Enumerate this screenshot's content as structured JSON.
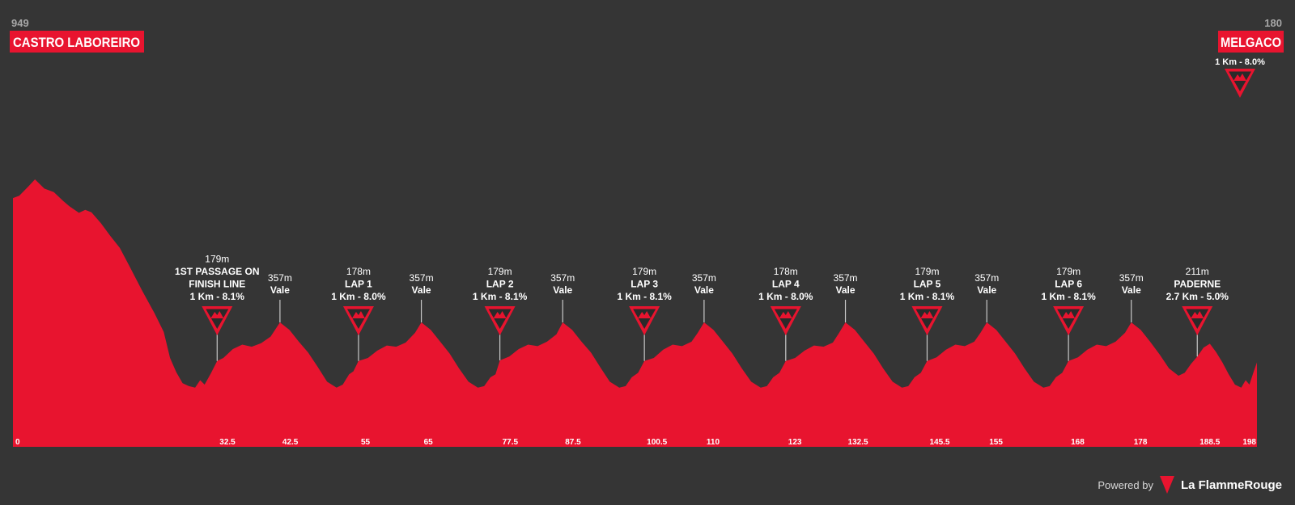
{
  "header": {
    "start": {
      "elevation": "949",
      "name": "CASTRO LABOREIRO"
    },
    "finish": {
      "elevation": "180",
      "name": "MELGACO"
    }
  },
  "chart_data": {
    "type": "area",
    "color": "#e8142f",
    "background": "#353535",
    "xlim": [
      0,
      198
    ],
    "x_ticks": [
      "0",
      "32.5",
      "42.5",
      "55",
      "65",
      "77.5",
      "87.5",
      "100.5",
      "110",
      "123",
      "132.5",
      "145.5",
      "155",
      "168",
      "178",
      "188.5",
      "198"
    ],
    "profile": [
      [
        0,
        840
      ],
      [
        1,
        848
      ],
      [
        2.5,
        880
      ],
      [
        3.5,
        903
      ],
      [
        5,
        872
      ],
      [
        6.5,
        860
      ],
      [
        8,
        830
      ],
      [
        9,
        812
      ],
      [
        10.5,
        790
      ],
      [
        11.5,
        800
      ],
      [
        12.5,
        792
      ],
      [
        14,
        755
      ],
      [
        15.5,
        712
      ],
      [
        17,
        672
      ],
      [
        18.5,
        612
      ],
      [
        20.5,
        530
      ],
      [
        22.5,
        452
      ],
      [
        24,
        388
      ],
      [
        25,
        300
      ],
      [
        26,
        252
      ],
      [
        27,
        215
      ],
      [
        28,
        205
      ],
      [
        29,
        200
      ],
      [
        29.8,
        225
      ],
      [
        30.5,
        210
      ],
      [
        31.5,
        248
      ],
      [
        32.5,
        290
      ],
      [
        33.5,
        300
      ],
      [
        35,
        330
      ],
      [
        36.5,
        345
      ],
      [
        38,
        338
      ],
      [
        39.5,
        350
      ],
      [
        41,
        372
      ],
      [
        42.5,
        420
      ],
      [
        44,
        395
      ],
      [
        45.5,
        355
      ],
      [
        47,
        318
      ],
      [
        48.5,
        270
      ],
      [
        50,
        220
      ],
      [
        51.5,
        200
      ],
      [
        52.5,
        210
      ],
      [
        53.5,
        245
      ],
      [
        54.2,
        255
      ],
      [
        55,
        290
      ],
      [
        56.5,
        300
      ],
      [
        58,
        325
      ],
      [
        59.5,
        342
      ],
      [
        61,
        338
      ],
      [
        62.5,
        352
      ],
      [
        64,
        385
      ],
      [
        65,
        420
      ],
      [
        66.5,
        395
      ],
      [
        68,
        355
      ],
      [
        69.5,
        315
      ],
      [
        71,
        265
      ],
      [
        72.5,
        220
      ],
      [
        74,
        200
      ],
      [
        75,
        205
      ],
      [
        76,
        235
      ],
      [
        76.8,
        245
      ],
      [
        77.5,
        292
      ],
      [
        79,
        305
      ],
      [
        80.5,
        330
      ],
      [
        82,
        345
      ],
      [
        83.5,
        340
      ],
      [
        85,
        355
      ],
      [
        86.5,
        380
      ],
      [
        87.5,
        420
      ],
      [
        89,
        395
      ],
      [
        90.5,
        355
      ],
      [
        92,
        318
      ],
      [
        93.5,
        268
      ],
      [
        95,
        220
      ],
      [
        96.5,
        200
      ],
      [
        97.5,
        205
      ],
      [
        98.5,
        235
      ],
      [
        99.5,
        250
      ],
      [
        100.5,
        290
      ],
      [
        102,
        300
      ],
      [
        103.5,
        328
      ],
      [
        105,
        345
      ],
      [
        106.5,
        340
      ],
      [
        108,
        355
      ],
      [
        109,
        385
      ],
      [
        110,
        420
      ],
      [
        111.5,
        395
      ],
      [
        113,
        355
      ],
      [
        114.5,
        315
      ],
      [
        116,
        265
      ],
      [
        117.5,
        220
      ],
      [
        119,
        200
      ],
      [
        120,
        205
      ],
      [
        121,
        235
      ],
      [
        122,
        250
      ],
      [
        123,
        290
      ],
      [
        124.5,
        300
      ],
      [
        126,
        325
      ],
      [
        127.5,
        342
      ],
      [
        129,
        338
      ],
      [
        130.5,
        352
      ],
      [
        131.5,
        385
      ],
      [
        132.5,
        420
      ],
      [
        134,
        395
      ],
      [
        135.5,
        355
      ],
      [
        137,
        315
      ],
      [
        138.5,
        265
      ],
      [
        140,
        220
      ],
      [
        141.5,
        200
      ],
      [
        142.5,
        205
      ],
      [
        143.5,
        235
      ],
      [
        144.5,
        250
      ],
      [
        145.5,
        290
      ],
      [
        147,
        302
      ],
      [
        148.5,
        328
      ],
      [
        150,
        345
      ],
      [
        151.5,
        340
      ],
      [
        153,
        355
      ],
      [
        154,
        385
      ],
      [
        155,
        420
      ],
      [
        156.5,
        395
      ],
      [
        158,
        355
      ],
      [
        159.5,
        315
      ],
      [
        161,
        265
      ],
      [
        162.5,
        220
      ],
      [
        164,
        200
      ],
      [
        165,
        205
      ],
      [
        166,
        235
      ],
      [
        167,
        250
      ],
      [
        168,
        290
      ],
      [
        169.5,
        302
      ],
      [
        171,
        328
      ],
      [
        172.5,
        345
      ],
      [
        174,
        340
      ],
      [
        175.5,
        355
      ],
      [
        177,
        385
      ],
      [
        178,
        420
      ],
      [
        179.5,
        395
      ],
      [
        181,
        355
      ],
      [
        182.5,
        312
      ],
      [
        184,
        265
      ],
      [
        185.5,
        240
      ],
      [
        186.5,
        250
      ],
      [
        187.5,
        280
      ],
      [
        188.5,
        305
      ],
      [
        189.5,
        335
      ],
      [
        190.5,
        348
      ],
      [
        191.5,
        320
      ],
      [
        192.5,
        285
      ],
      [
        193.5,
        245
      ],
      [
        194.5,
        210
      ],
      [
        195.5,
        200
      ],
      [
        196.2,
        225
      ],
      [
        196.8,
        210
      ],
      [
        197.5,
        255
      ],
      [
        198,
        285
      ]
    ],
    "climbs": [
      {
        "km": 32.5,
        "lines": [
          "179m",
          "1ST PASSAGE ON",
          "FINISH LINE",
          "1 Km - 8.1%"
        ],
        "categorized": true
      },
      {
        "km": 42.5,
        "lines": [
          "357m",
          "Vale"
        ],
        "categorized": false
      },
      {
        "km": 55,
        "lines": [
          "178m",
          "LAP 1",
          "1 Km - 8.0%"
        ],
        "categorized": true
      },
      {
        "km": 65,
        "lines": [
          "357m",
          "Vale"
        ],
        "categorized": false
      },
      {
        "km": 77.5,
        "lines": [
          "179m",
          "LAP 2",
          "1 Km - 8.1%"
        ],
        "categorized": true
      },
      {
        "km": 87.5,
        "lines": [
          "357m",
          "Vale"
        ],
        "categorized": false
      },
      {
        "km": 100.5,
        "lines": [
          "179m",
          "LAP 3",
          "1 Km - 8.1%"
        ],
        "categorized": true
      },
      {
        "km": 110,
        "lines": [
          "357m",
          "Vale"
        ],
        "categorized": false
      },
      {
        "km": 123,
        "lines": [
          "178m",
          "LAP 4",
          "1 Km - 8.0%"
        ],
        "categorized": true
      },
      {
        "km": 132.5,
        "lines": [
          "357m",
          "Vale"
        ],
        "categorized": false
      },
      {
        "km": 145.5,
        "lines": [
          "179m",
          "LAP 5",
          "1 Km - 8.1%"
        ],
        "categorized": true
      },
      {
        "km": 155,
        "lines": [
          "357m",
          "Vale"
        ],
        "categorized": false
      },
      {
        "km": 168,
        "lines": [
          "179m",
          "LAP 6",
          "1 Km - 8.1%"
        ],
        "categorized": true
      },
      {
        "km": 178,
        "lines": [
          "357m",
          "Vale"
        ],
        "categorized": false
      },
      {
        "km": 188.5,
        "lines": [
          "211m",
          "PADERNE",
          "2.7 Km - 5.0%"
        ],
        "categorized": true
      }
    ],
    "finish_climb": {
      "km": 198,
      "label": "1 Km - 8.0%"
    }
  },
  "footer": {
    "powered": "Powered by",
    "brand": "La FlammeRouge"
  }
}
